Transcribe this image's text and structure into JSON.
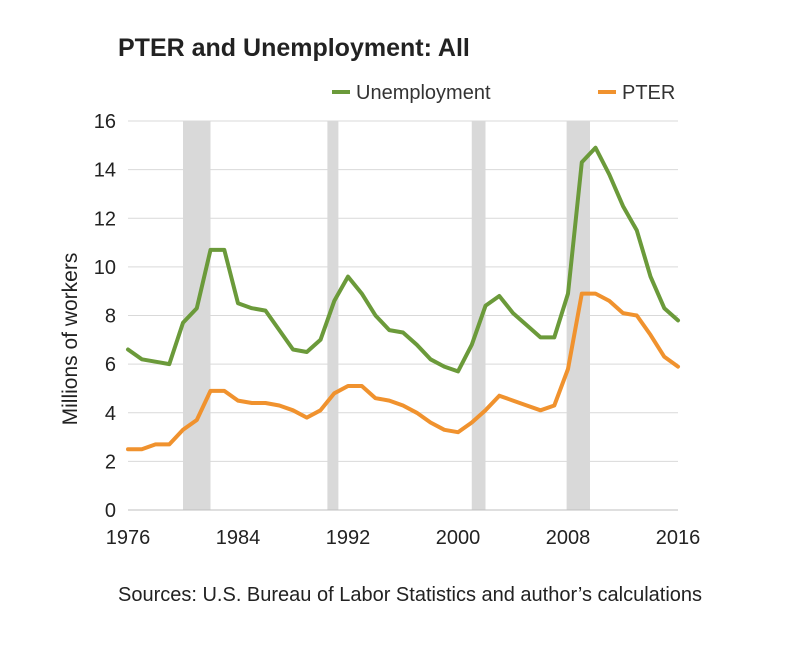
{
  "chart_data": {
    "type": "line",
    "title": "PTER and Unemployment: All",
    "ylabel": "Millions of workers",
    "xlabel": "",
    "ylim": [
      0,
      16
    ],
    "yticks": [
      0,
      2,
      4,
      6,
      8,
      10,
      12,
      14,
      16
    ],
    "xlim": [
      1976,
      2016
    ],
    "xticks": [
      1976,
      1984,
      1992,
      2000,
      2008,
      2016
    ],
    "grid": true,
    "legend_position": "top",
    "recessions": [
      [
        1980,
        1982
      ],
      [
        1990.5,
        1991.3
      ],
      [
        2001,
        2002
      ],
      [
        2007.9,
        2009.6
      ]
    ],
    "series": [
      {
        "name": "Unemployment",
        "color": "#6b9a3a",
        "x": [
          1976,
          1977,
          1978,
          1979,
          1980,
          1981,
          1982,
          1983,
          1984,
          1985,
          1986,
          1987,
          1988,
          1989,
          1990,
          1991,
          1992,
          1993,
          1994,
          1995,
          1996,
          1997,
          1998,
          1999,
          2000,
          2001,
          2002,
          2003,
          2004,
          2005,
          2006,
          2007,
          2008,
          2009,
          2010,
          2011,
          2012,
          2013,
          2014,
          2015,
          2016
        ],
        "values": [
          6.6,
          6.2,
          6.1,
          6.0,
          7.7,
          8.3,
          10.7,
          10.7,
          8.5,
          8.3,
          8.2,
          7.4,
          6.6,
          6.5,
          7.0,
          8.6,
          9.6,
          8.9,
          8.0,
          7.4,
          7.3,
          6.8,
          6.2,
          5.9,
          5.7,
          6.8,
          8.4,
          8.8,
          8.1,
          7.6,
          7.1,
          7.1,
          8.9,
          14.3,
          14.9,
          13.8,
          12.5,
          11.5,
          9.6,
          8.3,
          7.8
        ]
      },
      {
        "name": "PTER",
        "color": "#f0922e",
        "x": [
          1976,
          1977,
          1978,
          1979,
          1980,
          1981,
          1982,
          1983,
          1984,
          1985,
          1986,
          1987,
          1988,
          1989,
          1990,
          1991,
          1992,
          1993,
          1994,
          1995,
          1996,
          1997,
          1998,
          1999,
          2000,
          2001,
          2002,
          2003,
          2004,
          2005,
          2006,
          2007,
          2008,
          2009,
          2010,
          2011,
          2012,
          2013,
          2014,
          2015,
          2016
        ],
        "values": [
          2.5,
          2.5,
          2.7,
          2.7,
          3.3,
          3.7,
          4.9,
          4.9,
          4.5,
          4.4,
          4.4,
          4.3,
          4.1,
          3.8,
          4.1,
          4.8,
          5.1,
          5.1,
          4.6,
          4.5,
          4.3,
          4.0,
          3.6,
          3.3,
          3.2,
          3.6,
          4.1,
          4.7,
          4.5,
          4.3,
          4.1,
          4.3,
          5.8,
          8.9,
          8.9,
          8.6,
          8.1,
          8.0,
          7.2,
          6.3,
          5.9
        ]
      }
    ]
  },
  "source_note": "Sources: U.S. Bureau of Labor Statistics and author’s calculations"
}
